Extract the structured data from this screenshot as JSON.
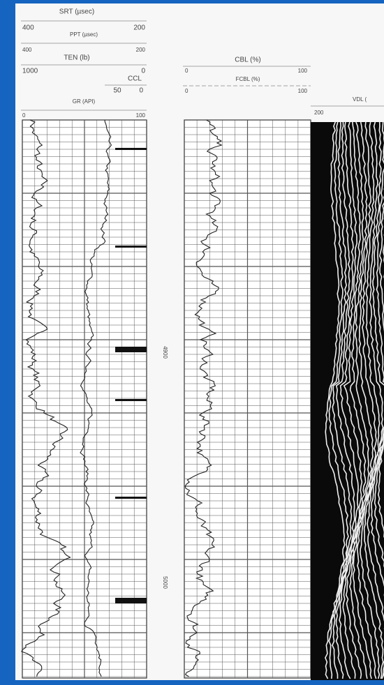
{
  "left_header": {
    "srt": {
      "label": "SRT (µsec)",
      "left": "400",
      "right": "200"
    },
    "ppt": {
      "label": "PPT (µsec)",
      "left": "400",
      "right": "200"
    },
    "ten": {
      "label": "TEN (lb)",
      "left": "1000",
      "right": "0"
    },
    "ccl": {
      "label": "CCL",
      "left": "50",
      "right": "0"
    },
    "gr": {
      "label": "GR (API)",
      "left": "0",
      "right": "100"
    }
  },
  "right_header": {
    "cbl": {
      "label": "CBL (%)",
      "left": "0",
      "right": "100"
    },
    "fcbl": {
      "label": "FCBL (%)",
      "left": "0",
      "right": "100"
    },
    "vdl": {
      "label": "VDL (",
      "left": "200"
    }
  },
  "depth_labels": [
    "4900",
    "5000"
  ]
}
